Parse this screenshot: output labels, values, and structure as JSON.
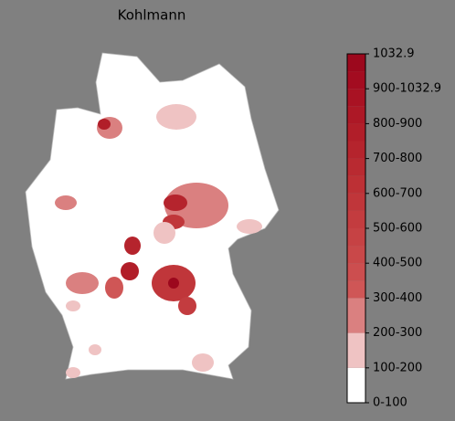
{
  "title": "Kohlmann",
  "colorbar": {
    "labels": [
      "0-100",
      "100-200",
      "200-300",
      "300-400",
      "400-500",
      "500-600",
      "600-700",
      "700-800",
      "800-900",
      "900-1032.9",
      "1032.9"
    ],
    "colors": [
      "#ffffff",
      "#efc3c3",
      "#da8080",
      "#cf5656",
      "#cc4e4f",
      "#c94849",
      "#c64244",
      "#c33c3f",
      "#c0363a",
      "#bd3035",
      "#b92a31",
      "#b5242d",
      "#b11e29",
      "#ad1826",
      "#a91223",
      "#a30c20",
      "#9c081d"
    ]
  }
}
